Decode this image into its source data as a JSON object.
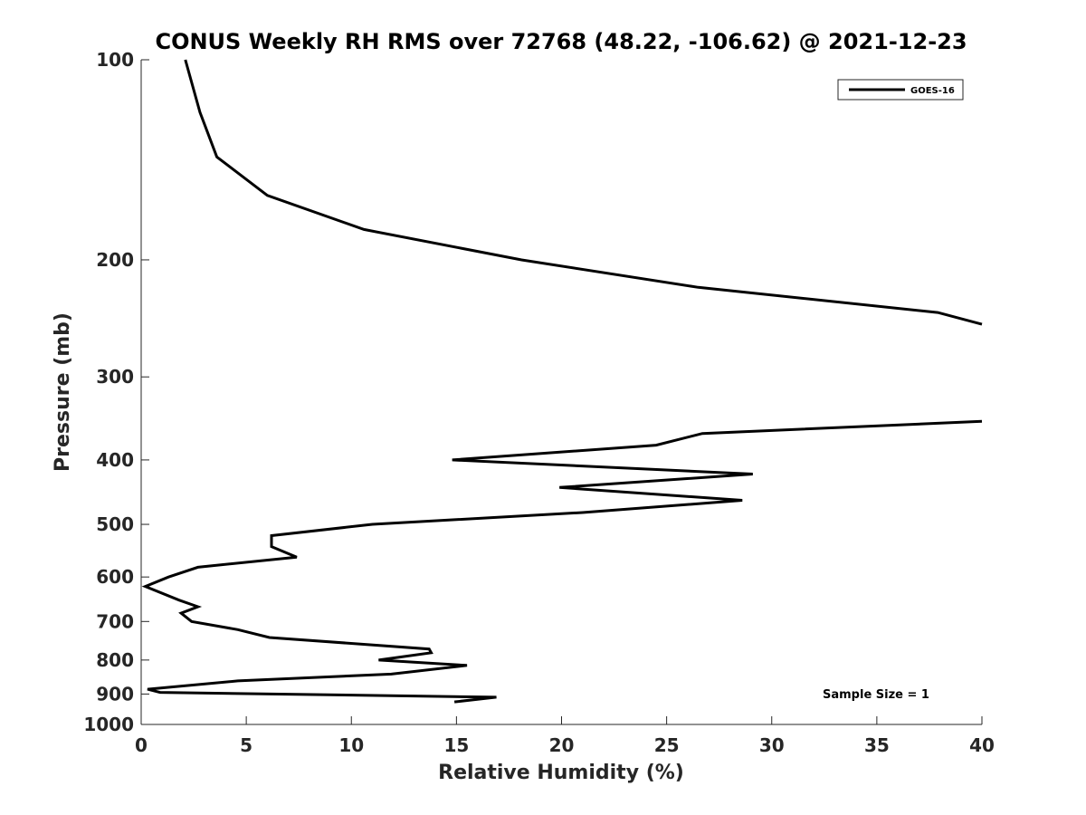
{
  "chart_data": {
    "type": "line",
    "title": "CONUS Weekly RH RMS over 72768 (48.22, -106.62) @ 2021-12-23",
    "xlabel": "Relative Humidity (%)",
    "ylabel": "Pressure (mb)",
    "xlim": [
      0,
      40
    ],
    "ylim": [
      100,
      1000
    ],
    "y_scale": "log",
    "y_reversed": true,
    "x_ticks": [
      "0",
      "5",
      "10",
      "15",
      "20",
      "25",
      "30",
      "35",
      "40"
    ],
    "y_ticks": [
      "100",
      "200",
      "300",
      "400",
      "500",
      "600",
      "700",
      "800",
      "900",
      "1000"
    ],
    "grid": false,
    "legend_position": "top-right",
    "annotation": "Sample Size = 1",
    "series": [
      {
        "name": "GOES-16",
        "color": "#000000",
        "segments": [
          [
            {
              "x": 2.1,
              "y": 100
            },
            {
              "x": 2.8,
              "y": 120
            },
            {
              "x": 3.6,
              "y": 140
            },
            {
              "x": 6.0,
              "y": 160
            },
            {
              "x": 10.6,
              "y": 180
            },
            {
              "x": 18.1,
              "y": 200
            },
            {
              "x": 26.5,
              "y": 220
            },
            {
              "x": 37.9,
              "y": 240
            },
            {
              "x": 40.0,
              "y": 250
            }
          ],
          [
            {
              "x": 40.0,
              "y": 350
            },
            {
              "x": 26.7,
              "y": 365
            },
            {
              "x": 24.5,
              "y": 380
            },
            {
              "x": 14.8,
              "y": 400
            },
            {
              "x": 29.1,
              "y": 420
            },
            {
              "x": 19.9,
              "y": 440
            },
            {
              "x": 28.6,
              "y": 460
            },
            {
              "x": 21.0,
              "y": 480
            },
            {
              "x": 11.0,
              "y": 500
            },
            {
              "x": 6.2,
              "y": 520
            },
            {
              "x": 6.2,
              "y": 540
            },
            {
              "x": 7.4,
              "y": 560
            },
            {
              "x": 2.7,
              "y": 580
            },
            {
              "x": 1.3,
              "y": 600
            },
            {
              "x": 0.2,
              "y": 620
            },
            {
              "x": 1.8,
              "y": 650
            },
            {
              "x": 2.7,
              "y": 665
            },
            {
              "x": 1.9,
              "y": 680
            },
            {
              "x": 2.4,
              "y": 700
            },
            {
              "x": 4.6,
              "y": 720
            },
            {
              "x": 6.1,
              "y": 740
            },
            {
              "x": 13.7,
              "y": 770
            },
            {
              "x": 13.8,
              "y": 780
            },
            {
              "x": 11.3,
              "y": 800
            },
            {
              "x": 15.5,
              "y": 815
            },
            {
              "x": 11.9,
              "y": 840
            },
            {
              "x": 4.6,
              "y": 860
            },
            {
              "x": 0.3,
              "y": 885
            },
            {
              "x": 0.9,
              "y": 895
            },
            {
              "x": 16.9,
              "y": 910
            },
            {
              "x": 14.9,
              "y": 925
            }
          ]
        ]
      }
    ]
  }
}
